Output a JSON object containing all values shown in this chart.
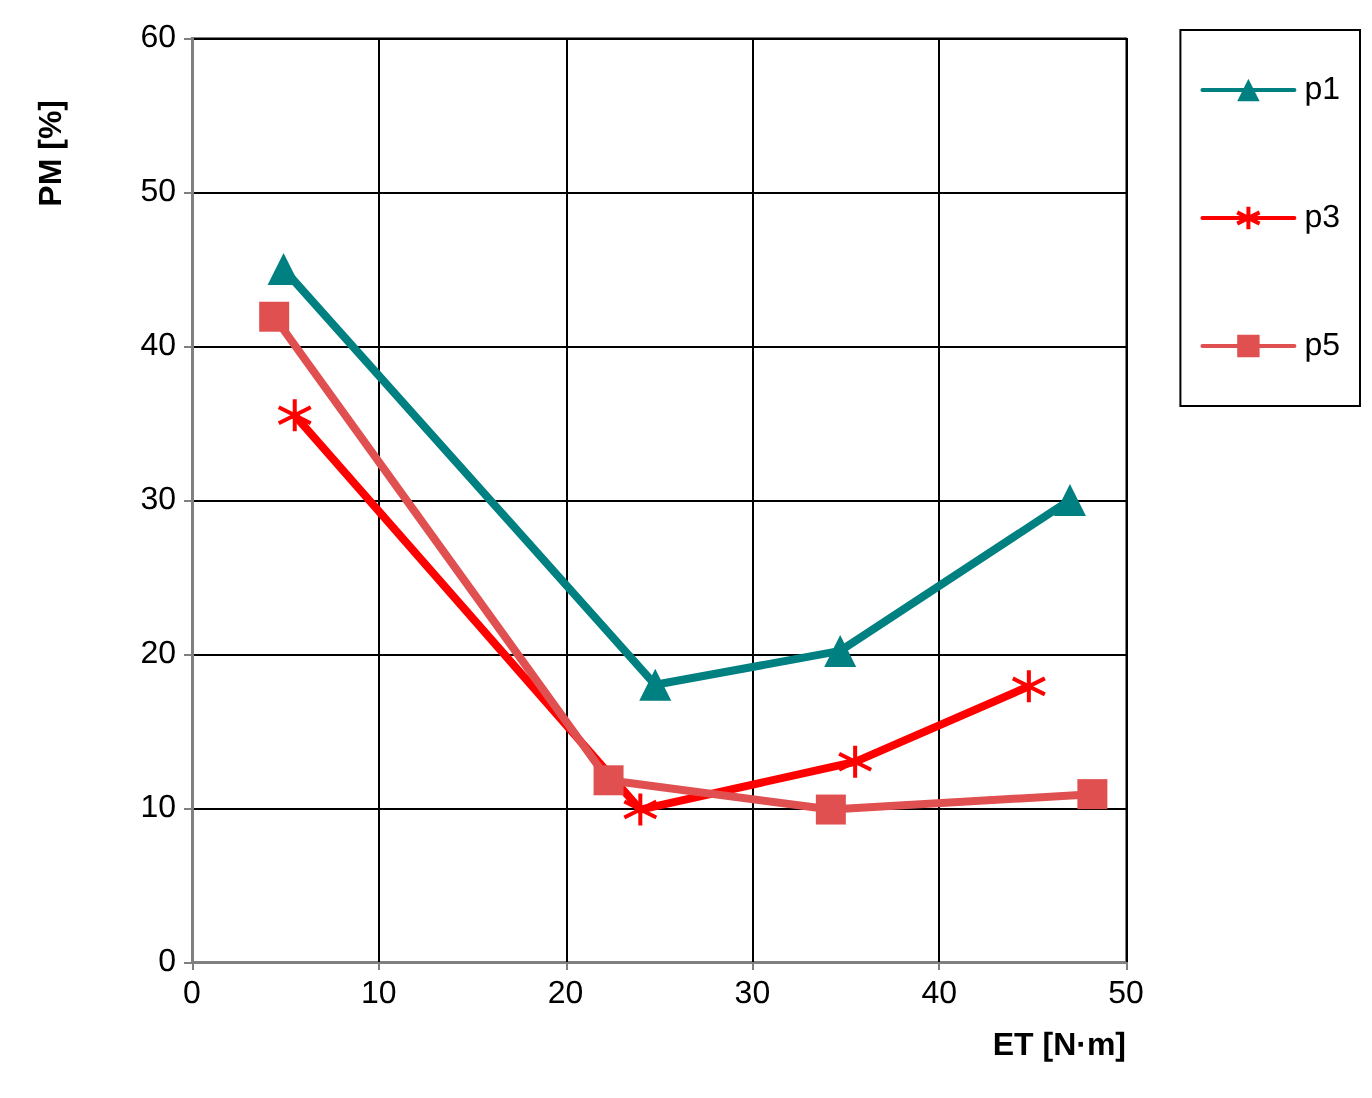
{
  "chart_data": {
    "type": "line",
    "xlabel": "ET [N·m]",
    "ylabel": "PM [%]",
    "xlim": [
      0,
      50
    ],
    "xticks": [
      0,
      10,
      20,
      30,
      40,
      50
    ],
    "ylim": [
      0,
      60
    ],
    "yticks": [
      0,
      10,
      20,
      30,
      40,
      50,
      60
    ],
    "grid": true,
    "legend": "top right",
    "line_style": "solid",
    "series": [
      {
        "name": "p1",
        "color": "#008080",
        "marker": "triangle",
        "x": [
          4.9,
          24.8,
          34.7,
          47.0
        ],
        "values": [
          45,
          18,
          20.2,
          30
        ]
      },
      {
        "name": "p3",
        "color": "#ff0000",
        "marker": "cross",
        "x": [
          5.5,
          24.0,
          35.5,
          44.8
        ],
        "values": [
          35.5,
          9.9,
          13,
          17.9
        ]
      },
      {
        "name": "p5",
        "color": "#e05050",
        "marker": "square",
        "x": [
          4.4,
          22.3,
          34.2,
          48.2
        ],
        "values": [
          41.9,
          11.8,
          9.9,
          10.9
        ]
      }
    ]
  }
}
